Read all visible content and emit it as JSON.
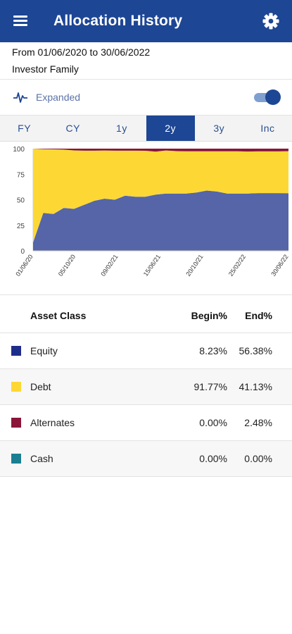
{
  "header": {
    "title": "Allocation History",
    "menu_icon": "hamburger-menu-icon",
    "settings_icon": "gear-icon"
  },
  "info": {
    "date_range": "From 01/06/2020 to 30/06/2022",
    "entity": "Investor Family"
  },
  "view_toggle": {
    "label": "Expanded",
    "icon": "pulse-icon",
    "on": true
  },
  "tabs": [
    {
      "label": "FY",
      "active": false
    },
    {
      "label": "CY",
      "active": false
    },
    {
      "label": "1y",
      "active": false
    },
    {
      "label": "2y",
      "active": true
    },
    {
      "label": "3y",
      "active": false
    },
    {
      "label": "Inc",
      "active": false
    }
  ],
  "chart_data": {
    "type": "area",
    "stacked": true,
    "ylim": [
      0,
      100
    ],
    "yticks": [
      0,
      25,
      50,
      75,
      100
    ],
    "x_tick_labels": [
      "01/06/20",
      "05/10/20",
      "09/02/21",
      "15/06/21",
      "20/10/21",
      "25/02/22",
      "30/06/22"
    ],
    "series": [
      {
        "name": "Equity",
        "color": "#5565a8",
        "values": [
          8.23,
          37,
          36,
          42,
          41,
          45,
          49,
          51,
          50,
          54,
          53,
          53,
          55,
          56,
          56,
          56,
          57,
          59,
          58,
          56,
          56,
          56,
          56.5,
          56.5,
          56.5,
          56.38
        ]
      },
      {
        "name": "Debt",
        "color": "#fdd835",
        "values": [
          91.77,
          62.5,
          63.3,
          57,
          57.3,
          53,
          49,
          47.2,
          48,
          44,
          45,
          44.9,
          42,
          42.2,
          41.6,
          41.4,
          40.4,
          38.4,
          39.4,
          41.4,
          41.4,
          41.2,
          40.8,
          40.8,
          40.8,
          41.13
        ]
      },
      {
        "name": "Alternates",
        "color": "#8b1538",
        "values": [
          0,
          0.5,
          0.7,
          1,
          1.7,
          2,
          2,
          1.8,
          2,
          2,
          2,
          2.1,
          3,
          1.8,
          2.4,
          2.6,
          2.6,
          2.6,
          2.6,
          2.6,
          2.6,
          2.8,
          2.7,
          2.7,
          2.7,
          2.48
        ]
      },
      {
        "name": "Cash",
        "color": "#1b7f92",
        "values": [
          0,
          0,
          0,
          0,
          0,
          0,
          0,
          0,
          0,
          0,
          0,
          0,
          0,
          0,
          0,
          0,
          0,
          0,
          0,
          0,
          0,
          0,
          0,
          0,
          0,
          0
        ]
      }
    ]
  },
  "table": {
    "headers": {
      "asset": "Asset Class",
      "begin": "Begin%",
      "end": "End%"
    },
    "rows": [
      {
        "name": "Equity",
        "color": "#1e2d8a",
        "begin": "8.23%",
        "end": "56.38%"
      },
      {
        "name": "Debt",
        "color": "#fdd835",
        "begin": "91.77%",
        "end": "41.13%"
      },
      {
        "name": "Alternates",
        "color": "#8b1538",
        "begin": "0.00%",
        "end": "2.48%"
      },
      {
        "name": "Cash",
        "color": "#1b7f92",
        "begin": "0.00%",
        "end": "0.00%"
      }
    ]
  }
}
